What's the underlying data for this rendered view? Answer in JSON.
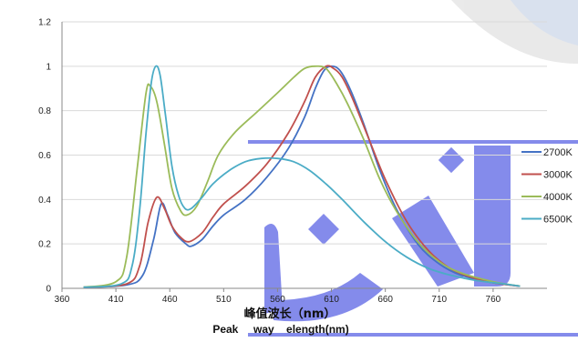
{
  "chart_data": {
    "type": "line",
    "title": "",
    "xlabel": "峰值波长（nm）",
    "xlabel_en": "Peak     way    elength(nm)",
    "ylabel": "",
    "xlim": [
      360,
      810
    ],
    "ylim": [
      0,
      1.2
    ],
    "x_ticks": [
      "360",
      "410",
      "460",
      "510",
      "560",
      "610",
      "660",
      "710",
      "760"
    ],
    "y_ticks": [
      "0",
      "0.2",
      "0.4",
      "0.6",
      "0.8",
      "1",
      "1.2"
    ],
    "grid": "horizontal",
    "legend_position": "right",
    "series": [
      {
        "name": "2700K",
        "color": "#4472c4",
        "points": [
          [
            380,
            0.005
          ],
          [
            420,
            0.015
          ],
          [
            435,
            0.06
          ],
          [
            445,
            0.22
          ],
          [
            452,
            0.38
          ],
          [
            458,
            0.33
          ],
          [
            465,
            0.25
          ],
          [
            475,
            0.2
          ],
          [
            480,
            0.19
          ],
          [
            490,
            0.22
          ],
          [
            500,
            0.28
          ],
          [
            510,
            0.33
          ],
          [
            530,
            0.4
          ],
          [
            550,
            0.5
          ],
          [
            570,
            0.63
          ],
          [
            585,
            0.77
          ],
          [
            595,
            0.9
          ],
          [
            603,
            0.98
          ],
          [
            610,
            1.0
          ],
          [
            618,
            0.98
          ],
          [
            628,
            0.89
          ],
          [
            640,
            0.74
          ],
          [
            655,
            0.53
          ],
          [
            670,
            0.36
          ],
          [
            690,
            0.2
          ],
          [
            710,
            0.11
          ],
          [
            730,
            0.06
          ],
          [
            760,
            0.025
          ],
          [
            785,
            0.01
          ]
        ]
      },
      {
        "name": "3000K",
        "color": "#c0504d",
        "points": [
          [
            380,
            0.005
          ],
          [
            420,
            0.02
          ],
          [
            432,
            0.1
          ],
          [
            440,
            0.3
          ],
          [
            448,
            0.41
          ],
          [
            455,
            0.36
          ],
          [
            462,
            0.28
          ],
          [
            470,
            0.23
          ],
          [
            478,
            0.21
          ],
          [
            490,
            0.25
          ],
          [
            500,
            0.32
          ],
          [
            510,
            0.38
          ],
          [
            530,
            0.46
          ],
          [
            550,
            0.56
          ],
          [
            570,
            0.7
          ],
          [
            585,
            0.84
          ],
          [
            595,
            0.95
          ],
          [
            605,
            1.0
          ],
          [
            612,
            0.99
          ],
          [
            620,
            0.95
          ],
          [
            630,
            0.85
          ],
          [
            645,
            0.67
          ],
          [
            660,
            0.49
          ],
          [
            680,
            0.3
          ],
          [
            700,
            0.17
          ],
          [
            720,
            0.09
          ],
          [
            740,
            0.05
          ],
          [
            760,
            0.025
          ],
          [
            785,
            0.01
          ]
        ]
      },
      {
        "name": "4000K",
        "color": "#9bbb59",
        "points": [
          [
            380,
            0.005
          ],
          [
            410,
            0.03
          ],
          [
            420,
            0.14
          ],
          [
            430,
            0.55
          ],
          [
            438,
            0.88
          ],
          [
            442,
            0.91
          ],
          [
            448,
            0.84
          ],
          [
            455,
            0.65
          ],
          [
            462,
            0.45
          ],
          [
            470,
            0.35
          ],
          [
            476,
            0.33
          ],
          [
            485,
            0.37
          ],
          [
            495,
            0.48
          ],
          [
            505,
            0.6
          ],
          [
            520,
            0.7
          ],
          [
            540,
            0.79
          ],
          [
            560,
            0.88
          ],
          [
            575,
            0.95
          ],
          [
            585,
            0.99
          ],
          [
            595,
            1.0
          ],
          [
            605,
            0.99
          ],
          [
            615,
            0.92
          ],
          [
            625,
            0.83
          ],
          [
            640,
            0.67
          ],
          [
            655,
            0.49
          ],
          [
            670,
            0.35
          ],
          [
            690,
            0.21
          ],
          [
            710,
            0.12
          ],
          [
            730,
            0.07
          ],
          [
            760,
            0.03
          ],
          [
            785,
            0.01
          ]
        ]
      },
      {
        "name": "6500K",
        "color": "#4bacc6",
        "points": [
          [
            380,
            0.005
          ],
          [
            415,
            0.02
          ],
          [
            425,
            0.1
          ],
          [
            432,
            0.35
          ],
          [
            438,
            0.7
          ],
          [
            443,
            0.93
          ],
          [
            447,
            1.0
          ],
          [
            451,
            0.96
          ],
          [
            456,
            0.78
          ],
          [
            462,
            0.55
          ],
          [
            468,
            0.42
          ],
          [
            474,
            0.36
          ],
          [
            480,
            0.36
          ],
          [
            490,
            0.41
          ],
          [
            500,
            0.47
          ],
          [
            515,
            0.53
          ],
          [
            530,
            0.57
          ],
          [
            545,
            0.585
          ],
          [
            560,
            0.585
          ],
          [
            575,
            0.57
          ],
          [
            590,
            0.53
          ],
          [
            605,
            0.47
          ],
          [
            620,
            0.4
          ],
          [
            640,
            0.3
          ],
          [
            660,
            0.21
          ],
          [
            680,
            0.14
          ],
          [
            700,
            0.09
          ],
          [
            720,
            0.06
          ],
          [
            745,
            0.035
          ],
          [
            770,
            0.02
          ],
          [
            785,
            0.01
          ]
        ]
      }
    ]
  }
}
